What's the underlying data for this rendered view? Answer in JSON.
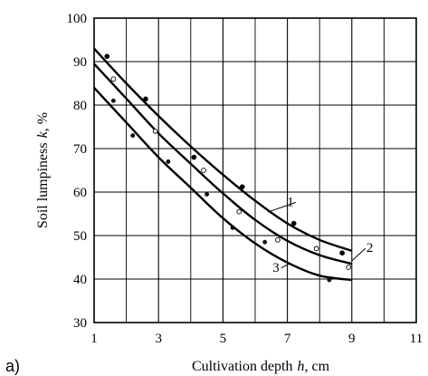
{
  "chart_data": {
    "type": "scatter",
    "panel_label": "a)",
    "xlabel_prefix": "Cultivation depth",
    "xlabel_var": "h",
    "xlabel_unit": ", cm",
    "ylabel_prefix": "Soil lumpiness",
    "ylabel_var": "k",
    "ylabel_unit": ", %",
    "xlim": [
      1,
      11
    ],
    "ylim": [
      30,
      100
    ],
    "x_ticks": [
      "1",
      "3",
      "5",
      "7",
      "9",
      "11"
    ],
    "y_ticks": [
      "30",
      "40",
      "50",
      "60",
      "70",
      "80",
      "90",
      "100"
    ],
    "x_tick_values": [
      1,
      3,
      5,
      7,
      9,
      11
    ],
    "y_tick_values": [
      30,
      40,
      50,
      60,
      70,
      80,
      90,
      100
    ],
    "grid": true,
    "series": [
      {
        "name": "1",
        "marker": "filled",
        "points": [
          [
            1.4,
            91.2
          ],
          [
            2.6,
            81.4
          ],
          [
            4.1,
            68
          ],
          [
            5.6,
            61.2
          ],
          [
            7.2,
            52.8
          ],
          [
            8.7,
            46
          ]
        ],
        "curve": [
          [
            1.0,
            93
          ],
          [
            2.0,
            85
          ],
          [
            3.0,
            77.5
          ],
          [
            4.0,
            70.5
          ],
          [
            5.0,
            64
          ],
          [
            6.0,
            58
          ],
          [
            7.0,
            52.8
          ],
          [
            8.0,
            49
          ],
          [
            9.0,
            46.5
          ]
        ]
      },
      {
        "name": "2",
        "marker": "open",
        "points": [
          [
            1.6,
            86
          ],
          [
            2.9,
            74
          ],
          [
            4.4,
            65
          ],
          [
            5.5,
            55.5
          ],
          [
            6.7,
            49
          ],
          [
            7.9,
            47
          ],
          [
            8.9,
            42.7
          ]
        ],
        "curve": [
          [
            1.0,
            89.5
          ],
          [
            2.0,
            81.5
          ],
          [
            3.0,
            73.5
          ],
          [
            4.0,
            66.5
          ],
          [
            5.0,
            59.7
          ],
          [
            6.0,
            53.6
          ],
          [
            7.0,
            48.8
          ],
          [
            8.0,
            45.5
          ],
          [
            9.0,
            43.5
          ]
        ]
      },
      {
        "name": "3",
        "marker": "small-filled",
        "points": [
          [
            1.6,
            81
          ],
          [
            2.2,
            73
          ],
          [
            3.3,
            67
          ],
          [
            4.5,
            59.5
          ],
          [
            5.3,
            51.8
          ],
          [
            6.3,
            48.5
          ],
          [
            8.3,
            39.8
          ]
        ],
        "curve": [
          [
            1.0,
            84
          ],
          [
            2.0,
            76
          ],
          [
            3.0,
            68
          ],
          [
            4.0,
            61
          ],
          [
            5.0,
            54
          ],
          [
            6.0,
            48.2
          ],
          [
            7.0,
            43.8
          ],
          [
            8.0,
            40.8
          ],
          [
            9.0,
            39.8
          ]
        ]
      }
    ]
  }
}
